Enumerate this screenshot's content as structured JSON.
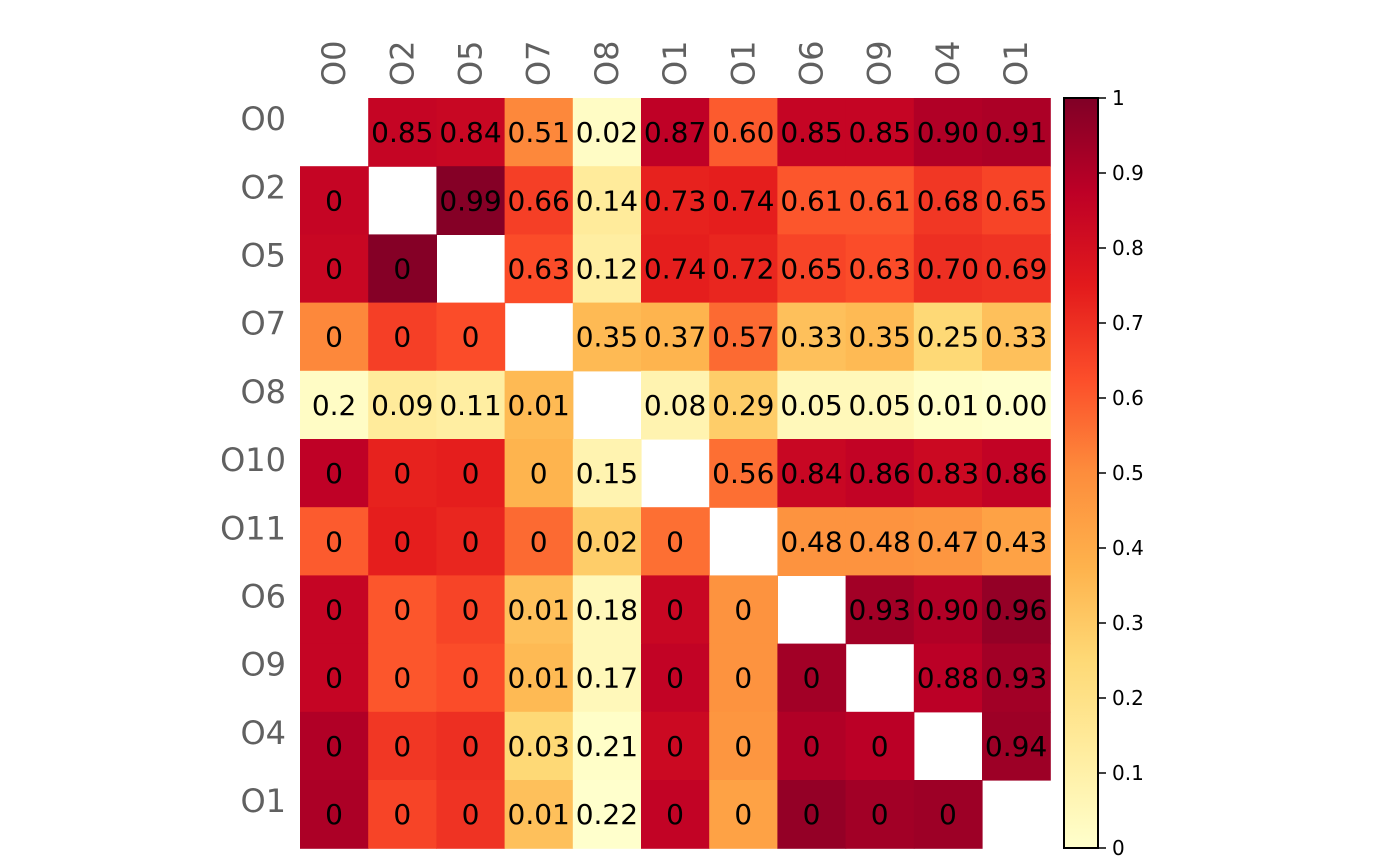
{
  "chart_data": {
    "type": "heatmap",
    "title": "",
    "xlabel": "",
    "ylabel": "",
    "row_labels": [
      "O0",
      "O2",
      "O5",
      "O7",
      "O8",
      "O10",
      "O11",
      "O6",
      "O9",
      "O4",
      "O1"
    ],
    "col_labels": [
      "O0",
      "O2",
      "O5",
      "O7",
      "O8",
      "O1",
      "O1",
      "O6",
      "O9",
      "O4",
      "O1"
    ],
    "fill_values": [
      [
        null,
        0.85,
        0.84,
        0.51,
        0.02,
        0.87,
        0.6,
        0.85,
        0.85,
        0.9,
        0.91
      ],
      [
        0.85,
        null,
        0.99,
        0.66,
        0.14,
        0.73,
        0.74,
        0.61,
        0.61,
        0.68,
        0.65
      ],
      [
        0.84,
        0.99,
        null,
        0.63,
        0.12,
        0.74,
        0.72,
        0.65,
        0.63,
        0.7,
        0.69
      ],
      [
        0.51,
        0.66,
        0.63,
        null,
        0.35,
        0.37,
        0.57,
        0.33,
        0.35,
        0.25,
        0.33
      ],
      [
        0.02,
        0.14,
        0.12,
        0.35,
        null,
        0.08,
        0.29,
        0.05,
        0.05,
        0.01,
        0.0
      ],
      [
        0.87,
        0.73,
        0.74,
        0.37,
        0.08,
        null,
        0.56,
        0.84,
        0.86,
        0.83,
        0.86
      ],
      [
        0.6,
        0.74,
        0.72,
        0.57,
        0.29,
        0.56,
        null,
        0.48,
        0.48,
        0.47,
        0.43
      ],
      [
        0.85,
        0.61,
        0.65,
        0.33,
        0.05,
        0.84,
        0.48,
        null,
        0.93,
        0.9,
        0.96
      ],
      [
        0.85,
        0.61,
        0.63,
        0.35,
        0.05,
        0.86,
        0.48,
        0.93,
        null,
        0.88,
        0.93
      ],
      [
        0.9,
        0.68,
        0.7,
        0.25,
        0.01,
        0.83,
        0.47,
        0.9,
        0.88,
        null,
        0.94
      ],
      [
        0.91,
        0.65,
        0.69,
        0.33,
        0.0,
        0.86,
        0.43,
        0.96,
        0.93,
        0.94,
        null
      ]
    ],
    "cell_labels": [
      [
        "",
        "0.85",
        "0.84",
        "0.51",
        "0.02",
        "0.87",
        "0.60",
        "0.85",
        "0.85",
        "0.90",
        "0.91"
      ],
      [
        "0",
        "",
        "0.99",
        "0.66",
        "0.14",
        "0.73",
        "0.74",
        "0.61",
        "0.61",
        "0.68",
        "0.65"
      ],
      [
        "0",
        "0",
        "",
        "0.63",
        "0.12",
        "0.74",
        "0.72",
        "0.65",
        "0.63",
        "0.70",
        "0.69"
      ],
      [
        "0",
        "0",
        "0",
        "",
        "0.35",
        "0.37",
        "0.57",
        "0.33",
        "0.35",
        "0.25",
        "0.33"
      ],
      [
        "0.2",
        "0.09",
        "0.11",
        "0.01",
        "",
        "0.08",
        "0.29",
        "0.05",
        "0.05",
        "0.01",
        "0.00"
      ],
      [
        "0",
        "0",
        "0",
        "0",
        "0.15",
        "",
        "0.56",
        "0.84",
        "0.86",
        "0.83",
        "0.86"
      ],
      [
        "0",
        "0",
        "0",
        "0",
        "0.02",
        "0",
        "",
        "0.48",
        "0.48",
        "0.47",
        "0.43"
      ],
      [
        "0",
        "0",
        "0",
        "0.01",
        "0.18",
        "0",
        "0",
        "",
        "0.93",
        "0.90",
        "0.96"
      ],
      [
        "0",
        "0",
        "0",
        "0.01",
        "0.17",
        "0",
        "0",
        "0",
        "",
        "0.88",
        "0.93"
      ],
      [
        "0",
        "0",
        "0",
        "0.03",
        "0.21",
        "0",
        "0",
        "0",
        "0",
        "",
        "0.94"
      ],
      [
        "0",
        "0",
        "0",
        "0.01",
        "0.22",
        "0",
        "0",
        "0",
        "0",
        "0",
        ""
      ]
    ],
    "colorbar": {
      "min": 0,
      "max": 1,
      "ticks": [
        0,
        0.1,
        0.2,
        0.3,
        0.4,
        0.5,
        0.6,
        0.7,
        0.8,
        0.9,
        1
      ],
      "tick_labels": [
        "0",
        "0.1",
        "0.2",
        "0.3",
        "0.4",
        "0.5",
        "0.6",
        "0.7",
        "0.8",
        "0.9",
        "1"
      ],
      "colorscale": "YlOrRd",
      "colors": [
        "#ffffcc",
        "#ffeda0",
        "#fed976",
        "#feb24c",
        "#fd8d3c",
        "#fc4e2a",
        "#e31a1c",
        "#bd0026",
        "#800026"
      ]
    },
    "grid": false,
    "legend": "colorbar-right"
  }
}
